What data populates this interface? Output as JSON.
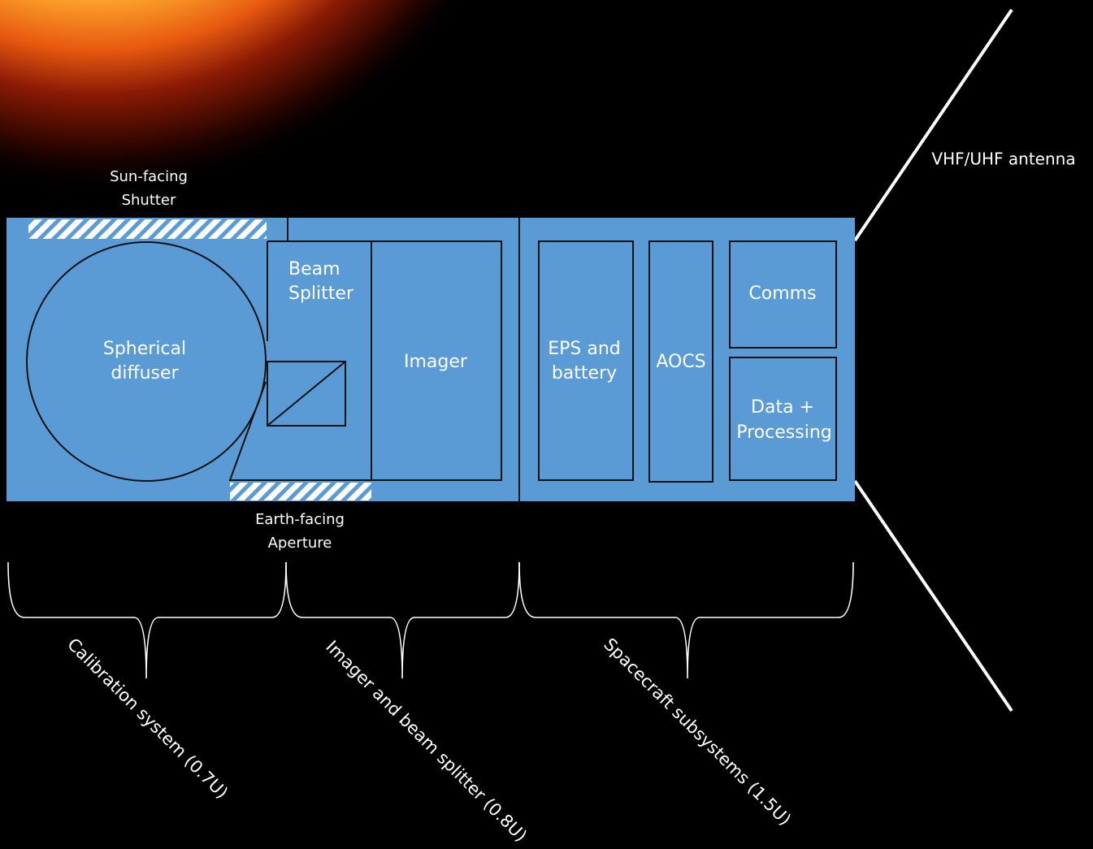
{
  "antenna": {
    "label": "VHF/UHF antenna"
  },
  "shutter": {
    "lines": [
      "Sun-facing",
      "Shutter"
    ]
  },
  "aperture": {
    "lines": [
      "Earth-facing",
      "Aperture"
    ]
  },
  "diffuser": {
    "lines": [
      "Spherical",
      "diffuser"
    ]
  },
  "beam_splitter": {
    "lines": [
      "Beam",
      "Splitter"
    ]
  },
  "imager": {
    "label": "Imager"
  },
  "eps": {
    "lines": [
      "EPS and",
      "battery"
    ]
  },
  "aocs": {
    "label": "AOCS"
  },
  "comms": {
    "label": "Comms"
  },
  "data_processing": {
    "lines": [
      "Data +",
      "Processing"
    ]
  },
  "sections": [
    {
      "label": "Calibration system (0.7U)"
    },
    {
      "label": "Imager and beam splitter (0.8U)"
    },
    {
      "label": "Spacecraft subsystems (1.5U)"
    }
  ]
}
